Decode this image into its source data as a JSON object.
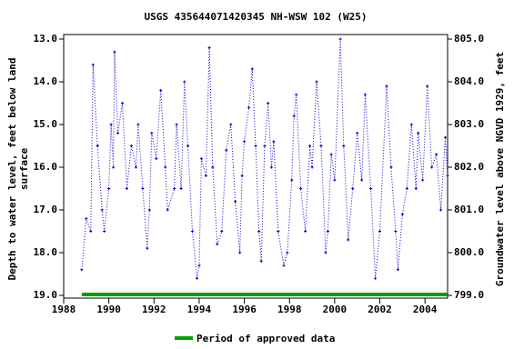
{
  "chart_data": {
    "type": "line",
    "title": "USGS 435644071420345 NH-WSW  102 (W25)",
    "ylabel": [
      "Depth to water level, feet below land",
      "surface"
    ],
    "y2label": "Groundwater level above NGVD 1929, feet",
    "x": [
      1988.8,
      1989.0,
      1989.2,
      1989.3,
      1989.5,
      1989.7,
      1989.8,
      1990.0,
      1990.1,
      1990.2,
      1990.25,
      1990.4,
      1990.6,
      1990.8,
      1991.0,
      1991.2,
      1991.3,
      1991.5,
      1991.7,
      1991.8,
      1991.9,
      1992.1,
      1992.3,
      1992.5,
      1992.6,
      1992.9,
      1993.0,
      1993.2,
      1993.35,
      1993.5,
      1993.7,
      1993.9,
      1994.0,
      1994.1,
      1994.3,
      1994.45,
      1994.6,
      1994.8,
      1995.0,
      1995.2,
      1995.4,
      1995.6,
      1995.8,
      1995.9,
      1996.0,
      1996.2,
      1996.35,
      1996.5,
      1996.65,
      1996.75,
      1996.9,
      1997.05,
      1997.2,
      1997.3,
      1997.5,
      1997.75,
      1997.9,
      1998.1,
      1998.2,
      1998.3,
      1998.5,
      1998.7,
      1998.9,
      1999.0,
      1999.2,
      1999.4,
      1999.6,
      1999.7,
      1999.85,
      2000.0,
      2000.25,
      2000.4,
      2000.6,
      2000.8,
      2001.0,
      2001.2,
      2001.35,
      2001.6,
      2001.8,
      2002.0,
      2002.3,
      2002.5,
      2002.7,
      2002.8,
      2003.0,
      2003.2,
      2003.4,
      2003.6,
      2003.7,
      2003.9,
      2004.1,
      2004.3,
      2004.5,
      2004.7,
      2004.9,
      2005.0
    ],
    "series": [
      {
        "name": "Depth to water level",
        "color": "#0000cc",
        "values": [
          18.4,
          17.2,
          17.5,
          13.6,
          15.5,
          17.0,
          17.5,
          16.5,
          15.0,
          16.0,
          13.3,
          15.2,
          14.5,
          16.5,
          15.5,
          16.0,
          15.0,
          16.5,
          17.9,
          17.0,
          15.2,
          15.8,
          14.2,
          16.0,
          17.0,
          16.5,
          15.0,
          16.5,
          14.0,
          15.5,
          17.5,
          18.6,
          18.3,
          15.8,
          16.2,
          13.2,
          16.0,
          17.8,
          17.5,
          15.6,
          15.0,
          16.8,
          18.0,
          16.2,
          15.4,
          14.6,
          13.7,
          15.5,
          17.5,
          18.2,
          15.5,
          14.5,
          16.0,
          15.4,
          17.5,
          18.3,
          18.0,
          16.3,
          14.8,
          14.3,
          16.5,
          17.5,
          15.5,
          16.0,
          14.0,
          15.5,
          18.0,
          17.5,
          15.7,
          16.3,
          13.0,
          15.5,
          17.7,
          16.5,
          15.2,
          16.3,
          14.3,
          16.5,
          18.6,
          17.5,
          14.1,
          16.0,
          17.5,
          18.4,
          17.1,
          16.5,
          15.0,
          16.5,
          15.2,
          16.3,
          14.1,
          16.0,
          15.7,
          17.0,
          15.3,
          16.2
        ]
      }
    ],
    "approved_period": {
      "name": "Period of approved data",
      "color": "#00a000",
      "x": [
        1988.8,
        2005
      ]
    },
    "xlim": [
      1988,
      2005
    ],
    "xticks": [
      1988,
      1990,
      1992,
      1994,
      1996,
      1998,
      2000,
      2002,
      2004
    ],
    "ylim": [
      13,
      19
    ],
    "invert_y": true,
    "yticks": [
      {
        "value": 13,
        "label": "13.0"
      },
      {
        "value": 14,
        "label": "14.0"
      },
      {
        "value": 15,
        "label": "15.0"
      },
      {
        "value": 16,
        "label": "16.0"
      },
      {
        "value": 17,
        "label": "17.0"
      },
      {
        "value": 18,
        "label": "18.0"
      },
      {
        "value": 19,
        "label": "19.0"
      }
    ],
    "y2lim": [
      799,
      805
    ],
    "y2ticks": [
      {
        "value": 799,
        "label": "799.0"
      },
      {
        "value": 800,
        "label": "800.0"
      },
      {
        "value": 801,
        "label": "801.0"
      },
      {
        "value": 802,
        "label": "802.0"
      },
      {
        "value": 803,
        "label": "803.0"
      },
      {
        "value": 804,
        "label": "804.0"
      },
      {
        "value": 805,
        "label": "805.0"
      }
    ]
  }
}
